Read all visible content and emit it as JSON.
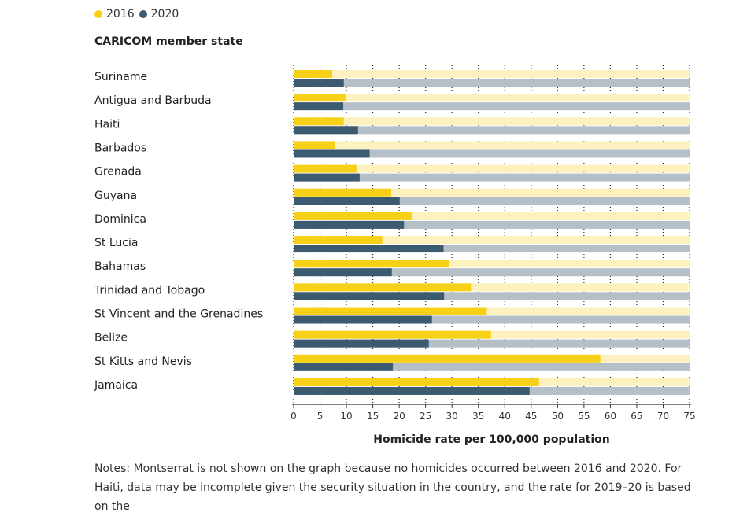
{
  "chart_data": {
    "type": "bar",
    "orientation": "horizontal",
    "title": "",
    "ylabel": "CARICOM member state",
    "xlabel": "Homicide rate per 100,000 population",
    "xlim": [
      0,
      75
    ],
    "xticks": [
      0,
      5,
      10,
      15,
      20,
      25,
      30,
      35,
      40,
      45,
      50,
      55,
      60,
      65,
      70,
      75
    ],
    "categories": [
      "Suriname",
      "Antigua and Barbuda",
      "Haiti",
      "Barbados",
      "Grenada",
      "Guyana",
      "Dominica",
      "St Lucia",
      "Bahamas",
      "Trinidad and Tobago",
      "St Vincent and the Grenadines",
      "Belize",
      "St Kitts and Nevis",
      "Jamaica"
    ],
    "series": [
      {
        "name": "2016",
        "color": "#f7d117",
        "track_color": "#fdf1c0",
        "values": [
          7.3,
          9.8,
          9.5,
          7.9,
          11.9,
          18.5,
          22.4,
          16.8,
          29.4,
          33.6,
          36.6,
          37.4,
          58.1,
          46.5
        ]
      },
      {
        "name": "2020",
        "color": "#3c5a70",
        "track_color": "#b5bfc8",
        "values": [
          9.5,
          9.4,
          12.2,
          14.4,
          12.5,
          20.1,
          20.9,
          28.4,
          18.6,
          28.5,
          26.2,
          25.6,
          18.8,
          44.7
        ]
      }
    ],
    "legend_position": "top-left"
  },
  "notes": "Notes: Montserrat is not shown on the graph because no homicides occurred between 2016 and 2020. For Haiti, data may be incomplete given the security situation in the country, and the rate for 2019–20 is based on the"
}
